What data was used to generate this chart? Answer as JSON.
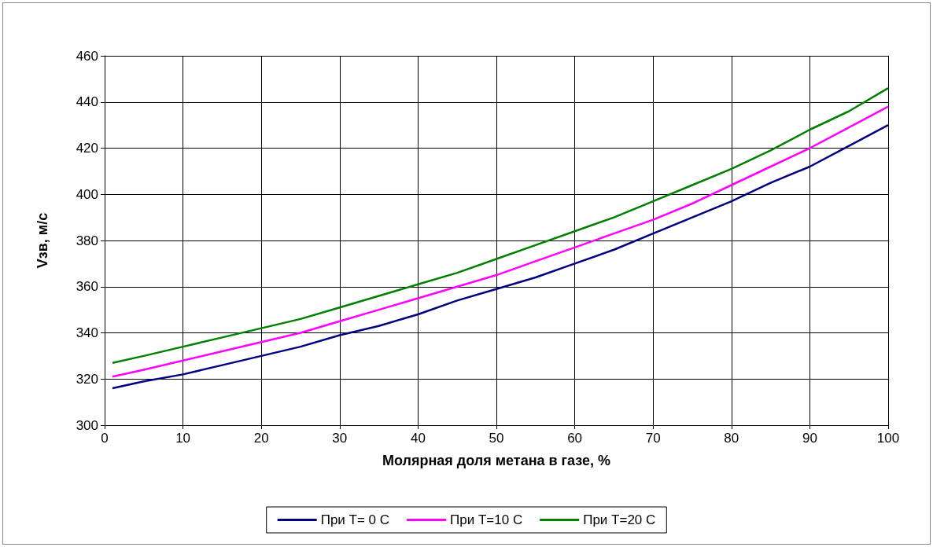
{
  "chart_data": {
    "type": "line",
    "xlabel": "Молярная доля метана в газе, %",
    "ylabel": "Vзв, м/с",
    "x": [
      1,
      5,
      10,
      15,
      20,
      25,
      30,
      35,
      40,
      45,
      50,
      55,
      60,
      65,
      70,
      75,
      80,
      85,
      90,
      95,
      100
    ],
    "series": [
      {
        "name": "При T= 0 С",
        "color": "#000080",
        "values": [
          316,
          319,
          322,
          326,
          330,
          334,
          339,
          343,
          348,
          354,
          359,
          364,
          370,
          376,
          383,
          390,
          397,
          405,
          412,
          421,
          430
        ]
      },
      {
        "name": "При T=10 С",
        "color": "#ff00ff",
        "values": [
          321,
          324,
          328,
          332,
          336,
          340,
          345,
          350,
          355,
          360,
          365,
          371,
          377,
          383,
          389,
          396,
          404,
          412,
          420,
          429,
          438
        ]
      },
      {
        "name": "При T=20 С",
        "color": "#008000",
        "values": [
          327,
          330,
          334,
          338,
          342,
          346,
          351,
          356,
          361,
          366,
          372,
          378,
          384,
          390,
          397,
          404,
          411,
          419,
          428,
          436,
          446
        ]
      }
    ],
    "xlim": [
      0,
      100
    ],
    "xticks": [
      0,
      10,
      20,
      30,
      40,
      50,
      60,
      70,
      80,
      90,
      100
    ],
    "ylim": [
      300,
      460
    ],
    "yticks": [
      300,
      320,
      340,
      360,
      380,
      400,
      420,
      440,
      460
    ],
    "grid": true,
    "legend": "bottom",
    "marker": "none",
    "line_style": "solid"
  }
}
